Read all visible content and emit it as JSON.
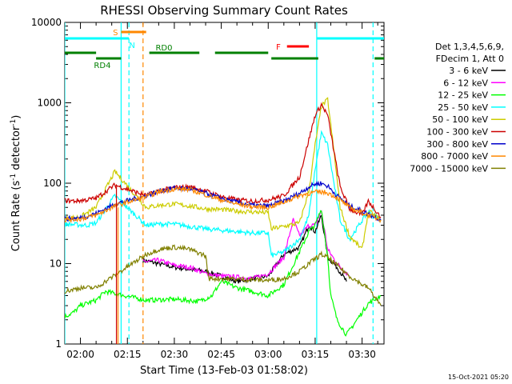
{
  "chart_data": {
    "type": "line",
    "title": "RHESSI Observing Summary Count Rates",
    "xlabel": "Start Time (13-Feb-03 01:58:02)",
    "ylabel": "Count Rate (s⁻¹ detector⁻¹)",
    "ylabel_parts": [
      "Count Rate (s",
      "-1",
      " detector",
      "-1",
      ")"
    ],
    "y_scale": "log",
    "ylim": [
      1,
      10000
    ],
    "xlim_minutes": [
      115,
      217
    ],
    "x_ticks": [
      {
        "label": "02:00",
        "minutes": 120
      },
      {
        "label": "02:15",
        "minutes": 135
      },
      {
        "label": "02:30",
        "minutes": 150
      },
      {
        "label": "02:45",
        "minutes": 165
      },
      {
        "label": "03:00",
        "minutes": 180
      },
      {
        "label": "03:15",
        "minutes": 195
      },
      {
        "label": "03:30",
        "minutes": 210
      }
    ],
    "y_ticks": [
      {
        "label": "1",
        "value": 1
      },
      {
        "label": "10",
        "value": 10
      },
      {
        "label": "100",
        "value": 100
      },
      {
        "label": "1000",
        "value": 1000
      },
      {
        "label": "10000",
        "value": 10000
      }
    ],
    "legend_header": [
      "Det 1,3,4,5,6,9,",
      "FDecim 1, Att 0"
    ],
    "series": [
      {
        "name": "3 - 6 keV",
        "color": "#000000",
        "points": [
          [
            140,
            11
          ],
          [
            145,
            10
          ],
          [
            150,
            9
          ],
          [
            155,
            8.5
          ],
          [
            160,
            8
          ],
          [
            165,
            7
          ],
          [
            170,
            6
          ],
          [
            175,
            6.5
          ],
          [
            180,
            7
          ],
          [
            185,
            13
          ],
          [
            190,
            16
          ],
          [
            193,
            30
          ],
          [
            195,
            25
          ],
          [
            197,
            40
          ],
          [
            199,
            12
          ],
          [
            202,
            9
          ],
          [
            205,
            6
          ]
        ]
      },
      {
        "name": "6 - 12 keV",
        "color": "#ff00ff",
        "points": [
          [
            140,
            10.5
          ],
          [
            145,
            11
          ],
          [
            150,
            9.5
          ],
          [
            155,
            9
          ],
          [
            160,
            7.5
          ],
          [
            165,
            7
          ],
          [
            170,
            6.8
          ],
          [
            175,
            6.5
          ],
          [
            180,
            7.5
          ],
          [
            185,
            12
          ],
          [
            188,
            35
          ],
          [
            190,
            22
          ],
          [
            193,
            30
          ],
          [
            195,
            30
          ],
          [
            197,
            45
          ],
          [
            199,
            15
          ],
          [
            202,
            10
          ],
          [
            206,
            7
          ]
        ]
      },
      {
        "name": "12 - 25 keV",
        "color": "#00ff00",
        "points": [
          [
            115,
            2.2
          ],
          [
            118,
            2.5
          ],
          [
            120,
            3
          ],
          [
            125,
            3.5
          ],
          [
            128,
            4.5
          ],
          [
            141,
            3.5
          ],
          [
            150,
            3.6
          ],
          [
            158,
            3.4
          ],
          [
            162,
            4
          ],
          [
            165,
            6
          ],
          [
            170,
            5
          ],
          [
            175,
            4.5
          ],
          [
            180,
            4
          ],
          [
            185,
            5.5
          ],
          [
            190,
            14
          ],
          [
            193,
            25
          ],
          [
            195,
            30
          ],
          [
            197,
            48
          ],
          [
            199,
            12
          ],
          [
            200,
            4
          ],
          [
            202,
            2
          ],
          [
            205,
            1.3
          ],
          [
            212,
            3.2
          ],
          [
            216,
            4
          ]
        ]
      },
      {
        "name": "25 - 50 keV",
        "color": "#00ffff",
        "points": [
          [
            115,
            31
          ],
          [
            122,
            30
          ],
          [
            125,
            32
          ],
          [
            131,
            70
          ],
          [
            141,
            30
          ],
          [
            145,
            31
          ],
          [
            150,
            31
          ],
          [
            155,
            29
          ],
          [
            160,
            27
          ],
          [
            165,
            26
          ],
          [
            170,
            25
          ],
          [
            175,
            24
          ],
          [
            180,
            24
          ],
          [
            181,
            12.5
          ],
          [
            185,
            14
          ],
          [
            190,
            20
          ],
          [
            193,
            40
          ],
          [
            195,
            150
          ],
          [
            197,
            420
          ],
          [
            199,
            300
          ],
          [
            201,
            100
          ],
          [
            203,
            35
          ],
          [
            206,
            20
          ],
          [
            212,
            45
          ],
          [
            216,
            35
          ]
        ]
      },
      {
        "name": "50 - 100 keV",
        "color": "#cccc00",
        "points": [
          [
            115,
            36
          ],
          [
            120,
            38
          ],
          [
            125,
            50
          ],
          [
            131,
            140
          ],
          [
            141,
            50
          ],
          [
            145,
            53
          ],
          [
            150,
            55
          ],
          [
            155,
            52
          ],
          [
            160,
            48
          ],
          [
            165,
            47
          ],
          [
            170,
            45
          ],
          [
            175,
            44
          ],
          [
            180,
            43
          ],
          [
            181,
            27
          ],
          [
            185,
            29
          ],
          [
            190,
            32
          ],
          [
            193,
            80
          ],
          [
            195,
            300
          ],
          [
            197,
            900
          ],
          [
            199,
            1100
          ],
          [
            201,
            250
          ],
          [
            203,
            50
          ],
          [
            206,
            22
          ],
          [
            210,
            15
          ],
          [
            212,
            45
          ],
          [
            216,
            35
          ]
        ]
      },
      {
        "name": "100 - 300 keV",
        "color": "#cc0000",
        "points": [
          [
            115,
            61
          ],
          [
            118,
            60
          ],
          [
            122,
            62
          ],
          [
            125,
            65
          ],
          [
            131,
            95
          ],
          [
            141,
            70
          ],
          [
            145,
            80
          ],
          [
            150,
            88
          ],
          [
            155,
            90
          ],
          [
            160,
            80
          ],
          [
            165,
            68
          ],
          [
            170,
            62
          ],
          [
            175,
            60
          ],
          [
            180,
            62
          ],
          [
            185,
            70
          ],
          [
            190,
            120
          ],
          [
            193,
            350
          ],
          [
            195,
            700
          ],
          [
            197,
            950
          ],
          [
            199,
            700
          ],
          [
            201,
            250
          ],
          [
            203,
            90
          ],
          [
            206,
            48
          ],
          [
            210,
            40
          ],
          [
            212,
            60
          ],
          [
            216,
            38
          ]
        ]
      },
      {
        "name": "300 - 800 keV",
        "color": "#0000cc",
        "points": [
          [
            115,
            36
          ],
          [
            120,
            37
          ],
          [
            125,
            42
          ],
          [
            131,
            55
          ],
          [
            141,
            70
          ],
          [
            145,
            80
          ],
          [
            150,
            87
          ],
          [
            155,
            85
          ],
          [
            160,
            75
          ],
          [
            165,
            65
          ],
          [
            170,
            58
          ],
          [
            175,
            53
          ],
          [
            180,
            52
          ],
          [
            185,
            60
          ],
          [
            190,
            75
          ],
          [
            193,
            90
          ],
          [
            195,
            98
          ],
          [
            197,
            100
          ],
          [
            199,
            92
          ],
          [
            202,
            70
          ],
          [
            206,
            52
          ],
          [
            210,
            45
          ],
          [
            216,
            35
          ]
        ]
      },
      {
        "name": "800 - 7000 keV",
        "color": "#ff8800",
        "points": [
          [
            115,
            35
          ],
          [
            120,
            36
          ],
          [
            125,
            40
          ],
          [
            131,
            52
          ],
          [
            141,
            68
          ],
          [
            145,
            78
          ],
          [
            150,
            85
          ],
          [
            155,
            83
          ],
          [
            160,
            72
          ],
          [
            165,
            62
          ],
          [
            170,
            55
          ],
          [
            175,
            51
          ],
          [
            180,
            50
          ],
          [
            185,
            58
          ],
          [
            190,
            70
          ],
          [
            193,
            75
          ],
          [
            195,
            77
          ],
          [
            197,
            78
          ],
          [
            199,
            76
          ],
          [
            202,
            66
          ],
          [
            206,
            50
          ],
          [
            210,
            43
          ],
          [
            216,
            35
          ]
        ]
      },
      {
        "name": "7000 - 15000 keV",
        "color": "#808000",
        "points": [
          [
            115,
            4.5
          ],
          [
            118,
            4.8
          ],
          [
            120,
            5
          ],
          [
            125,
            5
          ],
          [
            128,
            6
          ],
          [
            141,
            13
          ],
          [
            145,
            15
          ],
          [
            150,
            16
          ],
          [
            155,
            15
          ],
          [
            160,
            12.5
          ],
          [
            161,
            6.5
          ],
          [
            165,
            6.5
          ],
          [
            170,
            6.4
          ],
          [
            175,
            6.3
          ],
          [
            180,
            6.2
          ],
          [
            185,
            6.5
          ],
          [
            190,
            8
          ],
          [
            193,
            10
          ],
          [
            195,
            11.5
          ],
          [
            197,
            13
          ],
          [
            199,
            12
          ],
          [
            202,
            9.5
          ],
          [
            206,
            7
          ],
          [
            210,
            5.5
          ],
          [
            212,
            5
          ],
          [
            216,
            3
          ]
        ]
      }
    ],
    "spikes": [
      {
        "series": "100 - 300 keV",
        "color": "#cc0000",
        "at_minutes": 131.5,
        "from": 90,
        "to": 1
      },
      {
        "series": "800 - 7000 keV",
        "color": "#ff8800",
        "at_minutes": 132,
        "from": 50,
        "to": 1
      }
    ],
    "vertical_lines": [
      {
        "minutes": 115,
        "color": "#00ffff",
        "style": "solid"
      },
      {
        "minutes": 133,
        "color": "#00ffff",
        "style": "solid"
      },
      {
        "minutes": 135.5,
        "color": "#00ffff",
        "style": "dashed"
      },
      {
        "minutes": 140,
        "color": "#ff8800",
        "style": "dashed"
      },
      {
        "minutes": 195.5,
        "color": "#00ffff",
        "style": "solid"
      },
      {
        "minutes": 213.5,
        "color": "#00ffff",
        "style": "dashed"
      }
    ],
    "status_bars": [
      {
        "label": "S",
        "color": "#ff8800",
        "level": 1,
        "spans": [
          [
            133,
            141
          ]
        ],
        "label_at": 132,
        "label_side": "left"
      },
      {
        "label": "N",
        "color": "#00ffff",
        "level": 2,
        "spans": [
          [
            115,
            135.5
          ],
          [
            195.5,
            217
          ]
        ],
        "label_at": 136.5,
        "label_side": "below"
      },
      {
        "label": "F",
        "color": "#ff0000",
        "level": 3,
        "spans": [
          [
            186,
            193
          ]
        ],
        "label_at": 184,
        "label_side": "left"
      },
      {
        "label": "RD0",
        "color": "#008000",
        "level": 4,
        "spans": [
          [
            115,
            125
          ],
          [
            142,
            158
          ],
          [
            163,
            180
          ]
        ],
        "label_at": 144,
        "label_side": "above"
      },
      {
        "label": "RD4",
        "color": "#008000",
        "level": 5,
        "spans": [
          [
            125,
            133
          ],
          [
            181,
            196
          ],
          [
            214,
            217
          ]
        ],
        "label_at": 127,
        "label_side": "below"
      }
    ]
  },
  "footer": {
    "timestamp": "15-Oct-2021 05:20"
  }
}
